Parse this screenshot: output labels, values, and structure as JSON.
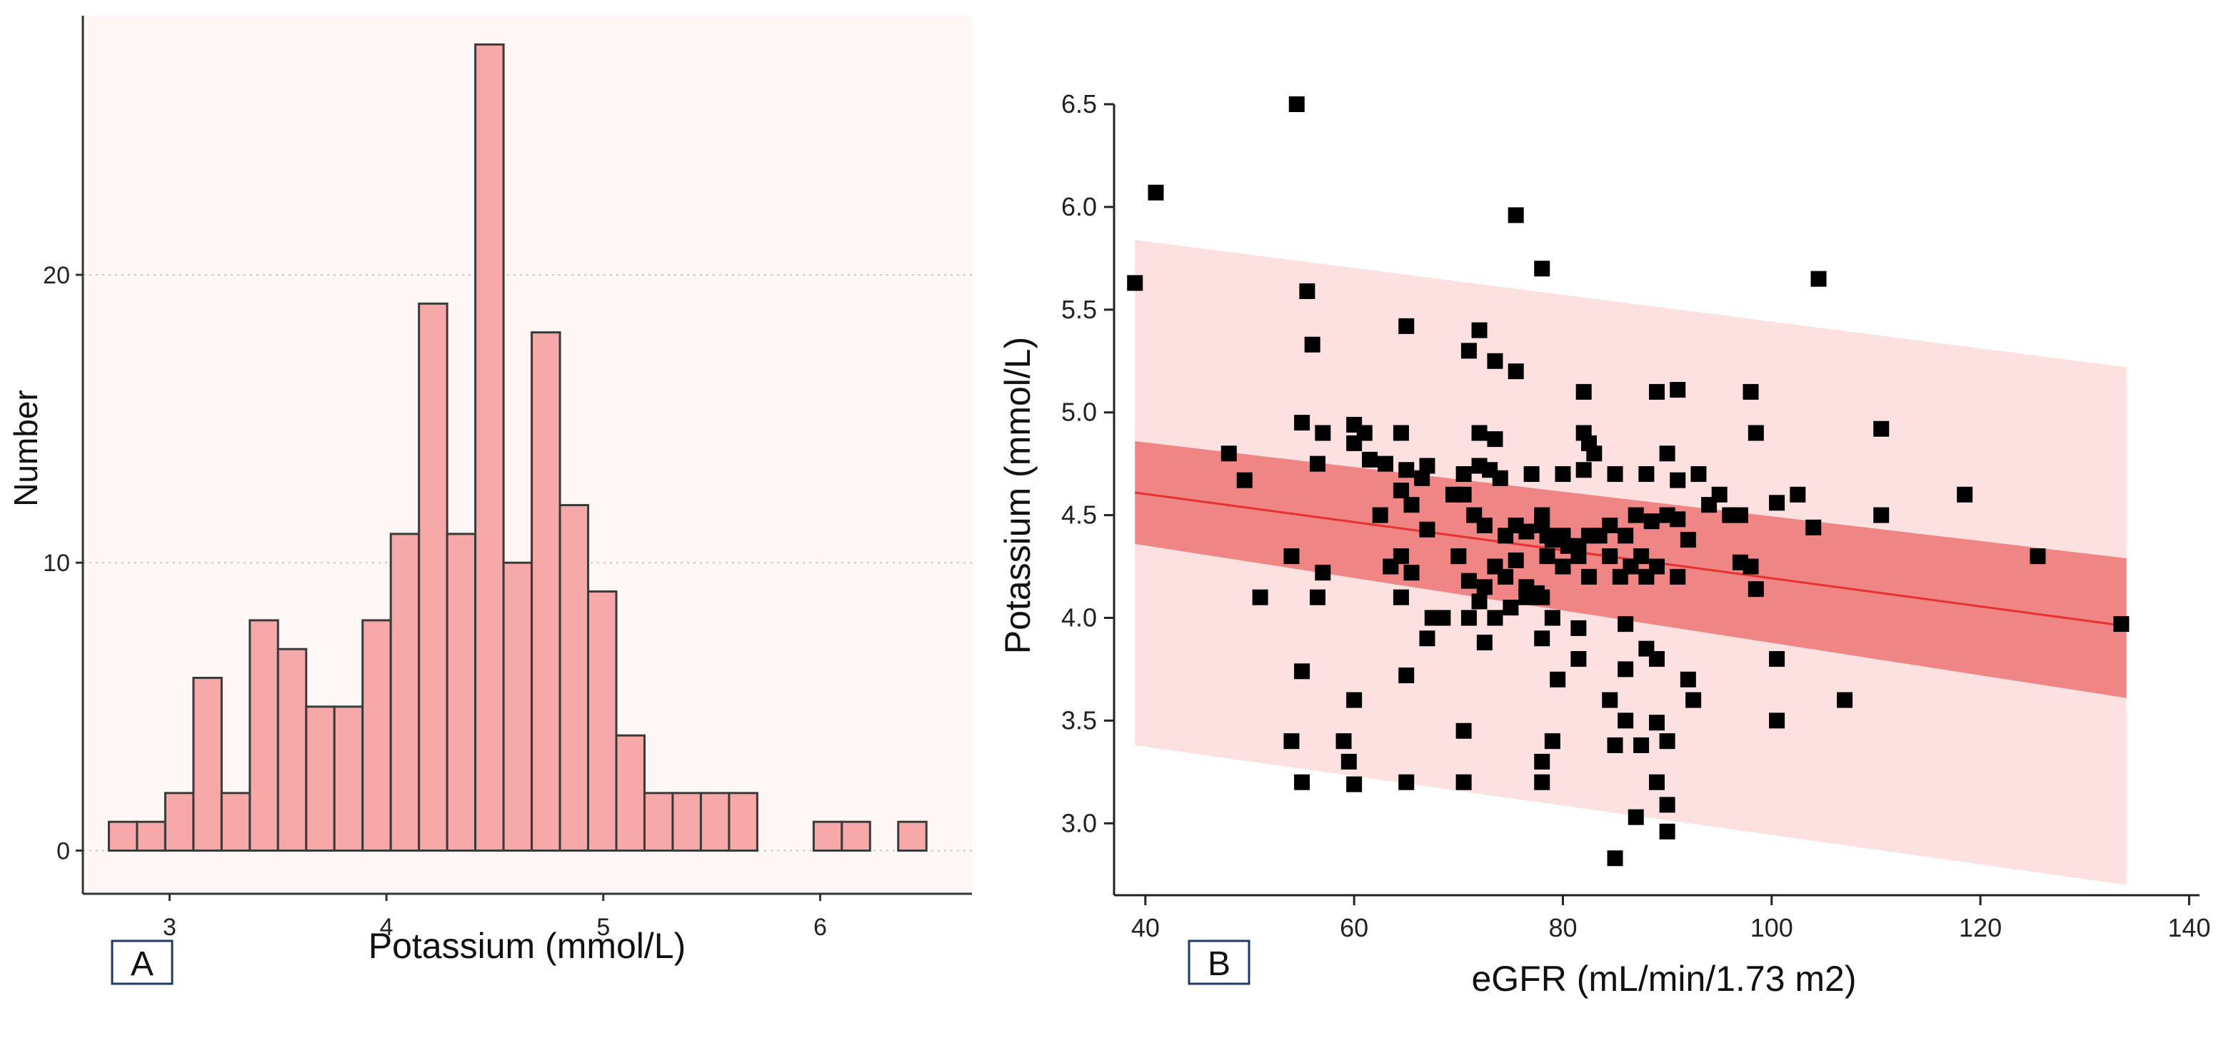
{
  "chart_data": [
    {
      "type": "bar",
      "panel_label": "A",
      "xlabel": "Potassium (mmol/L)",
      "ylabel": "Number",
      "xlim": [
        2.6,
        6.7
      ],
      "ylim": [
        -1.5,
        29
      ],
      "xticks": [
        3,
        4,
        5,
        6
      ],
      "yticks": [
        0,
        10,
        20
      ],
      "grid": "horizontal-dotted",
      "bar_color": "#f7a9a9",
      "bin_width": 0.13,
      "bins_start": [
        2.72,
        2.85,
        2.98,
        3.11,
        3.24,
        3.37,
        3.5,
        3.63,
        3.76,
        3.89,
        4.02,
        4.15,
        4.28,
        4.41,
        4.54,
        4.67,
        4.8,
        4.93,
        5.06,
        5.19,
        5.32,
        5.45,
        5.58,
        5.71,
        5.84,
        5.97,
        6.1,
        6.23,
        6.36
      ],
      "values": [
        1,
        1,
        2,
        6,
        2,
        8,
        7,
        5,
        5,
        8,
        11,
        19,
        11,
        28,
        10,
        18,
        12,
        9,
        4,
        2,
        2,
        2,
        2,
        0,
        0,
        1,
        1,
        0,
        1
      ]
    },
    {
      "type": "scatter",
      "panel_label": "B",
      "xlabel": "eGFR (mL/min/1.73 m2)",
      "ylabel": "Potassium (mmol/L)",
      "xlim": [
        37,
        141
      ],
      "ylim": [
        2.65,
        6.5
      ],
      "xticks": [
        40,
        60,
        80,
        100,
        120,
        140
      ],
      "yticks": [
        3.0,
        3.5,
        4.0,
        4.5,
        5.0,
        5.5,
        6.0,
        6.5
      ],
      "ytick_labels": [
        "3.0",
        "3.5",
        "4.0",
        "4.5",
        "5.0",
        "5.5",
        "6.0",
        "6.5"
      ],
      "point_color": "#000000",
      "regression": {
        "x": [
          39,
          134
        ],
        "y": [
          4.61,
          3.96
        ],
        "color": "#e8302e"
      },
      "confidence_band": {
        "x": [
          39,
          134
        ],
        "upper": [
          4.86,
          4.29
        ],
        "lower": [
          4.36,
          3.61
        ],
        "color": "#f08585"
      },
      "prediction_band": {
        "x": [
          39,
          134
        ],
        "upper": [
          5.84,
          5.22
        ],
        "lower": [
          3.38,
          2.7
        ],
        "color": "#fde0e0"
      },
      "points": [
        [
          39,
          5.63
        ],
        [
          41,
          6.07
        ],
        [
          54.5,
          6.5
        ],
        [
          75.5,
          5.96
        ],
        [
          78,
          5.7
        ],
        [
          104.5,
          5.65
        ],
        [
          55.5,
          5.59
        ],
        [
          56,
          5.33
        ],
        [
          65,
          5.42
        ],
        [
          71,
          5.3
        ],
        [
          72,
          5.4
        ],
        [
          73.5,
          5.25
        ],
        [
          75.5,
          5.2
        ],
        [
          82,
          5.1
        ],
        [
          89,
          5.1
        ],
        [
          91,
          5.11
        ],
        [
          98,
          5.1
        ],
        [
          55,
          4.95
        ],
        [
          57,
          4.9
        ],
        [
          60,
          4.94
        ],
        [
          61,
          4.9
        ],
        [
          64.5,
          4.9
        ],
        [
          72,
          4.9
        ],
        [
          73.5,
          4.87
        ],
        [
          82,
          4.9
        ],
        [
          82.5,
          4.85
        ],
        [
          83,
          4.8
        ],
        [
          90,
          4.8
        ],
        [
          98.5,
          4.9
        ],
        [
          110.5,
          4.92
        ],
        [
          48,
          4.8
        ],
        [
          49.5,
          4.67
        ],
        [
          56.5,
          4.75
        ],
        [
          60,
          4.85
        ],
        [
          61.5,
          4.77
        ],
        [
          63,
          4.75
        ],
        [
          65,
          4.72
        ],
        [
          66.5,
          4.68
        ],
        [
          67,
          4.74
        ],
        [
          69.5,
          4.6
        ],
        [
          70.5,
          4.7
        ],
        [
          72,
          4.74
        ],
        [
          73,
          4.72
        ],
        [
          74,
          4.68
        ],
        [
          77,
          4.7
        ],
        [
          78,
          4.5
        ],
        [
          80,
          4.7
        ],
        [
          82,
          4.72
        ],
        [
          85,
          4.7
        ],
        [
          88,
          4.7
        ],
        [
          91,
          4.67
        ],
        [
          93,
          4.7
        ],
        [
          95,
          4.6
        ],
        [
          97,
          4.5
        ],
        [
          100.5,
          4.56
        ],
        [
          102.5,
          4.6
        ],
        [
          118.5,
          4.6
        ],
        [
          62.5,
          4.5
        ],
        [
          64.5,
          4.62
        ],
        [
          65.5,
          4.55
        ],
        [
          67,
          4.43
        ],
        [
          70.5,
          4.6
        ],
        [
          71.5,
          4.5
        ],
        [
          72.5,
          4.45
        ],
        [
          74.5,
          4.4
        ],
        [
          75.5,
          4.45
        ],
        [
          76.5,
          4.42
        ],
        [
          78,
          4.45
        ],
        [
          78.5,
          4.4
        ],
        [
          79,
          4.38
        ],
        [
          80,
          4.4
        ],
        [
          80.5,
          4.35
        ],
        [
          81.5,
          4.35
        ],
        [
          82.5,
          4.4
        ],
        [
          83.5,
          4.4
        ],
        [
          84.5,
          4.45
        ],
        [
          86,
          4.4
        ],
        [
          87,
          4.5
        ],
        [
          88.5,
          4.47
        ],
        [
          90,
          4.5
        ],
        [
          91,
          4.48
        ],
        [
          92,
          4.38
        ],
        [
          94,
          4.55
        ],
        [
          96,
          4.5
        ],
        [
          104,
          4.44
        ],
        [
          110.5,
          4.5
        ],
        [
          54,
          4.3
        ],
        [
          56.5,
          4.1
        ],
        [
          57,
          4.22
        ],
        [
          63.5,
          4.25
        ],
        [
          64.5,
          4.3
        ],
        [
          65.5,
          4.22
        ],
        [
          70,
          4.3
        ],
        [
          71,
          4.18
        ],
        [
          72.5,
          4.15
        ],
        [
          73.5,
          4.25
        ],
        [
          74.5,
          4.2
        ],
        [
          75.5,
          4.28
        ],
        [
          76.5,
          4.15
        ],
        [
          77.5,
          4.12
        ],
        [
          78.5,
          4.3
        ],
        [
          80,
          4.25
        ],
        [
          81.5,
          4.3
        ],
        [
          82.5,
          4.2
        ],
        [
          84.5,
          4.3
        ],
        [
          85.5,
          4.2
        ],
        [
          86.5,
          4.25
        ],
        [
          87.5,
          4.3
        ],
        [
          88,
          4.2
        ],
        [
          89,
          4.25
        ],
        [
          91,
          4.2
        ],
        [
          97,
          4.27
        ],
        [
          98,
          4.25
        ],
        [
          98.5,
          4.14
        ],
        [
          125.5,
          4.3
        ],
        [
          51,
          4.1
        ],
        [
          64.5,
          4.1
        ],
        [
          67.5,
          4.0
        ],
        [
          68.5,
          4.0
        ],
        [
          71,
          4.0
        ],
        [
          72,
          4.08
        ],
        [
          73.5,
          4.0
        ],
        [
          75,
          4.05
        ],
        [
          76.5,
          4.1
        ],
        [
          78,
          4.1
        ],
        [
          79,
          4.0
        ],
        [
          81.5,
          3.95
        ],
        [
          86,
          3.97
        ],
        [
          133.5,
          3.97
        ],
        [
          67,
          3.9
        ],
        [
          72.5,
          3.88
        ],
        [
          78,
          3.9
        ],
        [
          81.5,
          3.8
        ],
        [
          79.5,
          3.7
        ],
        [
          86,
          3.75
        ],
        [
          88,
          3.85
        ],
        [
          89,
          3.8
        ],
        [
          92,
          3.7
        ],
        [
          100.5,
          3.8
        ],
        [
          55,
          3.74
        ],
        [
          65,
          3.72
        ],
        [
          60,
          3.6
        ],
        [
          84.5,
          3.6
        ],
        [
          92.5,
          3.6
        ],
        [
          107,
          3.6
        ],
        [
          54,
          3.4
        ],
        [
          59,
          3.4
        ],
        [
          70.5,
          3.45
        ],
        [
          78,
          3.3
        ],
        [
          79,
          3.4
        ],
        [
          85,
          3.38
        ],
        [
          86,
          3.5
        ],
        [
          87.5,
          3.38
        ],
        [
          89,
          3.49
        ],
        [
          90,
          3.4
        ],
        [
          100.5,
          3.5
        ],
        [
          55,
          3.2
        ],
        [
          59.5,
          3.3
        ],
        [
          60,
          3.19
        ],
        [
          65,
          3.2
        ],
        [
          70.5,
          3.2
        ],
        [
          78,
          3.2
        ],
        [
          89,
          3.2
        ],
        [
          90,
          3.09
        ],
        [
          87,
          3.03
        ],
        [
          90,
          2.96
        ],
        [
          85,
          2.83
        ]
      ]
    }
  ]
}
